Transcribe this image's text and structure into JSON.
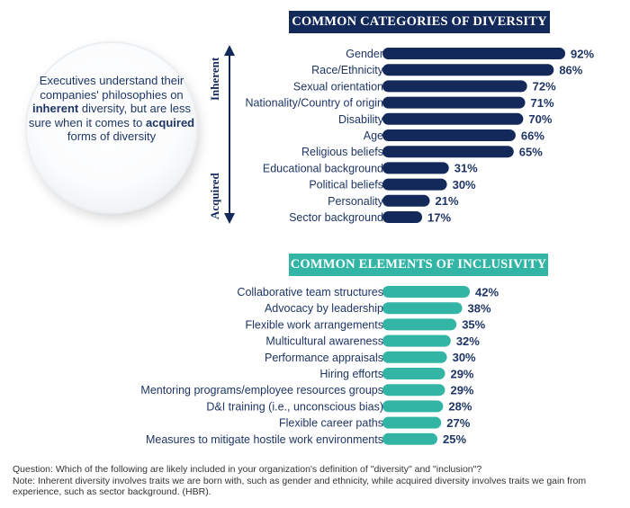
{
  "callout": {
    "text_before": "Executives understand their companies' philosophies on ",
    "highlight_1": "inherent",
    "text_middle": " diversity, but are less sure when it comes to ",
    "highlight_2": "acquired",
    "text_after": " forms of diversity"
  },
  "axis_labels": {
    "top": "Inherent",
    "bottom": "Acquired"
  },
  "chart_data": [
    {
      "type": "bar",
      "orientation": "horizontal",
      "title": "COMMON CATEGORIES OF DIVERSITY",
      "categories": [
        "Gender",
        "Race/Ethnicity",
        "Sexual orientation",
        "Nationality/Country of origin",
        "Disability",
        "Age",
        "Religious beliefs",
        "Educational background",
        "Political beliefs",
        "Personality",
        "Sector background"
      ],
      "values": [
        92,
        86,
        72,
        71,
        70,
        66,
        65,
        31,
        30,
        21,
        17
      ],
      "value_suffix": "%",
      "color": "#13295a",
      "xlim": [
        0,
        100
      ]
    },
    {
      "type": "bar",
      "orientation": "horizontal",
      "title": "COMMON ELEMENTS OF INCLUSIVITY",
      "categories": [
        "Collaborative team structures",
        "Advocacy by leadership",
        "Flexible work arrangements",
        "Multicultural awareness",
        "Performance appraisals",
        "Hiring efforts",
        "Mentoring programs/employee resources groups",
        "D&I training (i.e., unconscious bias)",
        "Flexible career paths",
        "Measures to mitigate hostile work environments"
      ],
      "values": [
        42,
        38,
        35,
        32,
        30,
        29,
        29,
        28,
        27,
        25
      ],
      "value_suffix": "%",
      "color": "#33b5a5",
      "xlim": [
        0,
        100
      ]
    }
  ],
  "footnote": {
    "question": "Question: Which of the following are likely included in your organization's definition of \"diversity\" and \"inclusion\"?",
    "note": "Note: Inherent diversity involves traits we are born with, such as gender and ethnicity, while acquired diversity involves traits we gain from experience, such as sector background. (HBR)."
  }
}
